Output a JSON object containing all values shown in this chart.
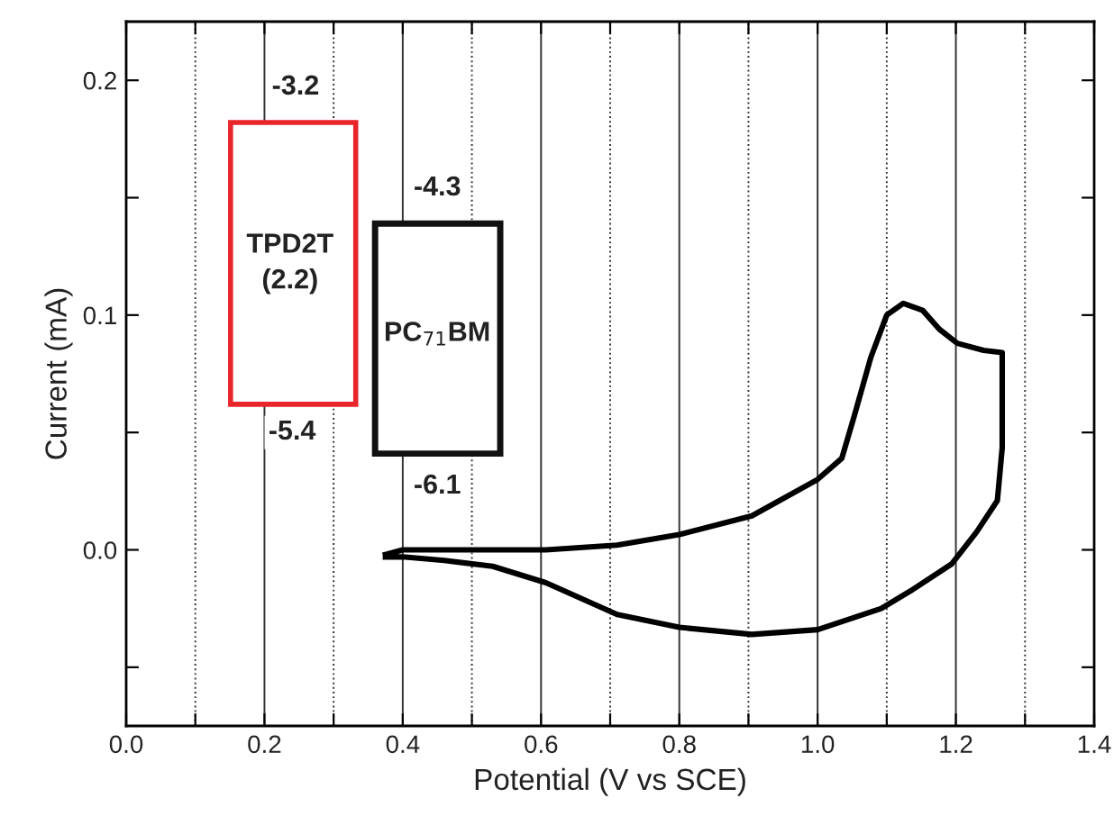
{
  "chart_data": {
    "type": "line",
    "xlabel": "Potential (V vs SCE)",
    "ylabel": "Current (mA)",
    "xlim": [
      0.0,
      1.4
    ],
    "ylim": [
      -0.075,
      0.225
    ],
    "xticks": [
      {
        "value": 0.0,
        "label": "0.0"
      },
      {
        "value": 0.2,
        "label": "0.2"
      },
      {
        "value": 0.4,
        "label": "0.4"
      },
      {
        "value": 0.6,
        "label": "0.6"
      },
      {
        "value": 0.8,
        "label": "0.8"
      },
      {
        "value": 1.0,
        "label": "1.0"
      },
      {
        "value": 1.2,
        "label": "1.2"
      },
      {
        "value": 1.4,
        "label": "1.4"
      }
    ],
    "yticks": [
      {
        "value": 0.0,
        "label": "0.0"
      },
      0.1,
      0.2
    ],
    "grid": "x",
    "line_style": "solid",
    "annotations": [
      "-3.2",
      "TPD2T\n(2.2)",
      "-5.4",
      "-4.3",
      "PC$_{71}$BM",
      "-6.1"
    ],
    "series": [
      {
        "color": "#000000",
        "x": [
          0.375,
          0.4,
          0.607,
          0.71,
          0.8,
          0.905,
          1.0,
          1.035,
          1.053,
          1.077,
          1.1,
          1.124,
          1.152,
          1.176,
          1.202,
          1.24,
          1.267,
          1.267,
          1.26,
          1.23,
          1.194,
          1.137,
          1.092,
          1.0,
          0.905,
          0.8,
          0.71,
          0.645,
          0.607,
          0.53,
          0.46,
          0.4,
          0.375
        ],
        "values": [
          -0.002,
          0.0,
          0.0,
          0.002,
          0.0065,
          0.0145,
          0.03,
          0.039,
          0.057,
          0.082,
          0.1,
          0.105,
          0.102,
          0.094,
          0.088,
          0.085,
          0.084,
          0.0435,
          0.021,
          0.0076,
          -0.006,
          -0.017,
          -0.025,
          -0.034,
          -0.036,
          -0.033,
          -0.0275,
          -0.019,
          -0.014,
          -0.007,
          -0.0045,
          -0.003,
          -0.003
        ]
      }
    ]
  }
}
